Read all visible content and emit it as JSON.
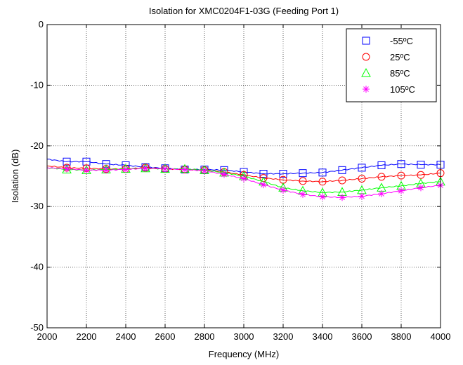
{
  "chart_data": {
    "type": "line",
    "title": "Isolation for XMC0204F1-03G (Feeding Port 1)",
    "xlabel": "Frequency (MHz)",
    "ylabel": "Isolation (dB)",
    "xlim": [
      2000,
      4000
    ],
    "ylim": [
      -50,
      0
    ],
    "xticks": [
      2000,
      2200,
      2400,
      2600,
      2800,
      3000,
      3200,
      3400,
      3600,
      3800,
      4000
    ],
    "yticks": [
      -50,
      -40,
      -30,
      -20,
      -10,
      0
    ],
    "grid": true,
    "legend_position": "top-right",
    "x": [
      2000,
      2100,
      2200,
      2300,
      2400,
      2500,
      2600,
      2700,
      2800,
      2900,
      3000,
      3100,
      3200,
      3300,
      3400,
      3500,
      3600,
      3700,
      3800,
      3900,
      4000
    ],
    "series": [
      {
        "name": "-55ºC",
        "color": "#0000ff",
        "marker": "square",
        "values": [
          -22.2,
          -22.6,
          -22.6,
          -23.0,
          -23.2,
          -23.5,
          -23.7,
          -23.9,
          -23.9,
          -24.0,
          -24.3,
          -24.6,
          -24.6,
          -24.5,
          -24.4,
          -24.0,
          -23.6,
          -23.2,
          -23.0,
          -23.1,
          -23.1
        ]
      },
      {
        "name": "25ºC",
        "color": "#ff0000",
        "marker": "circle",
        "values": [
          -23.3,
          -23.6,
          -23.7,
          -23.8,
          -23.8,
          -23.6,
          -23.8,
          -23.9,
          -24.0,
          -24.3,
          -24.8,
          -25.3,
          -25.6,
          -25.8,
          -25.9,
          -25.7,
          -25.4,
          -25.1,
          -24.9,
          -24.8,
          -24.5
        ]
      },
      {
        "name": "85ºC",
        "color": "#00ff00",
        "marker": "triangle",
        "values": [
          -23.6,
          -23.9,
          -24.0,
          -23.9,
          -23.8,
          -23.7,
          -23.8,
          -23.8,
          -24.0,
          -24.4,
          -25.0,
          -25.9,
          -26.9,
          -27.4,
          -27.7,
          -27.6,
          -27.3,
          -26.9,
          -26.6,
          -26.2,
          -25.9
        ]
      },
      {
        "name": "105ºC",
        "color": "#ff00ff",
        "marker": "star",
        "values": [
          -23.6,
          -23.8,
          -24.0,
          -24.0,
          -23.9,
          -23.7,
          -23.8,
          -23.9,
          -24.1,
          -24.7,
          -25.4,
          -26.4,
          -27.3,
          -28.0,
          -28.4,
          -28.5,
          -28.3,
          -27.9,
          -27.4,
          -26.9,
          -26.5
        ]
      }
    ]
  }
}
